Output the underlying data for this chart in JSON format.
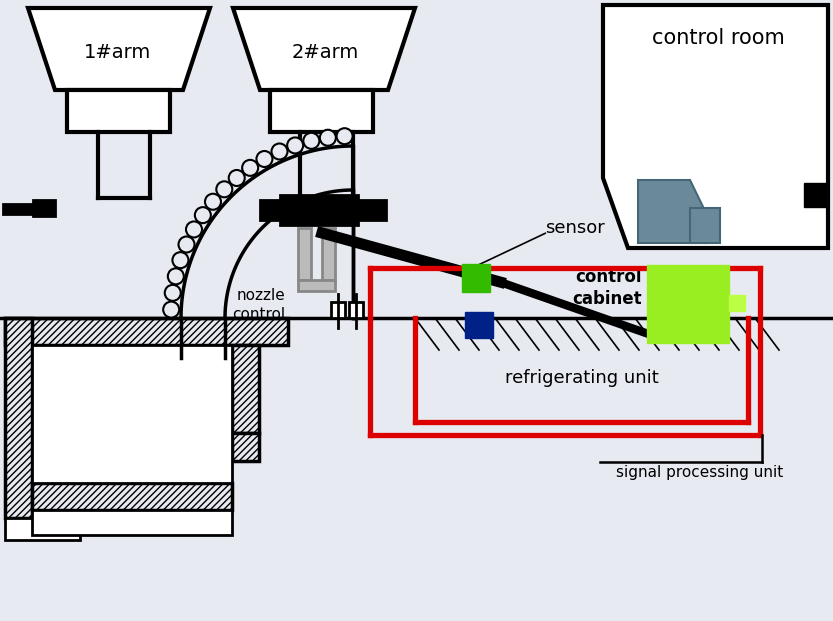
{
  "bg_color": "#e8eaf2",
  "labels": {
    "arm1": "1#arm",
    "arm2": "2#arm",
    "control_room": "control room",
    "sensor": "sensor",
    "nozzle_control": "nozzle\ncontrol",
    "control_cabinet": "control\ncabinet",
    "refrigerating_unit": "refrigerating unit",
    "signal_processing_unit": "signal processing unit"
  },
  "colors": {
    "black": "#000000",
    "red": "#dd0000",
    "green": "#33bb00",
    "light_green": "#99ee22",
    "light_green2": "#bbff44",
    "dark_blue": "#002288",
    "gray": "#6a8a9a",
    "white": "#ffffff"
  }
}
